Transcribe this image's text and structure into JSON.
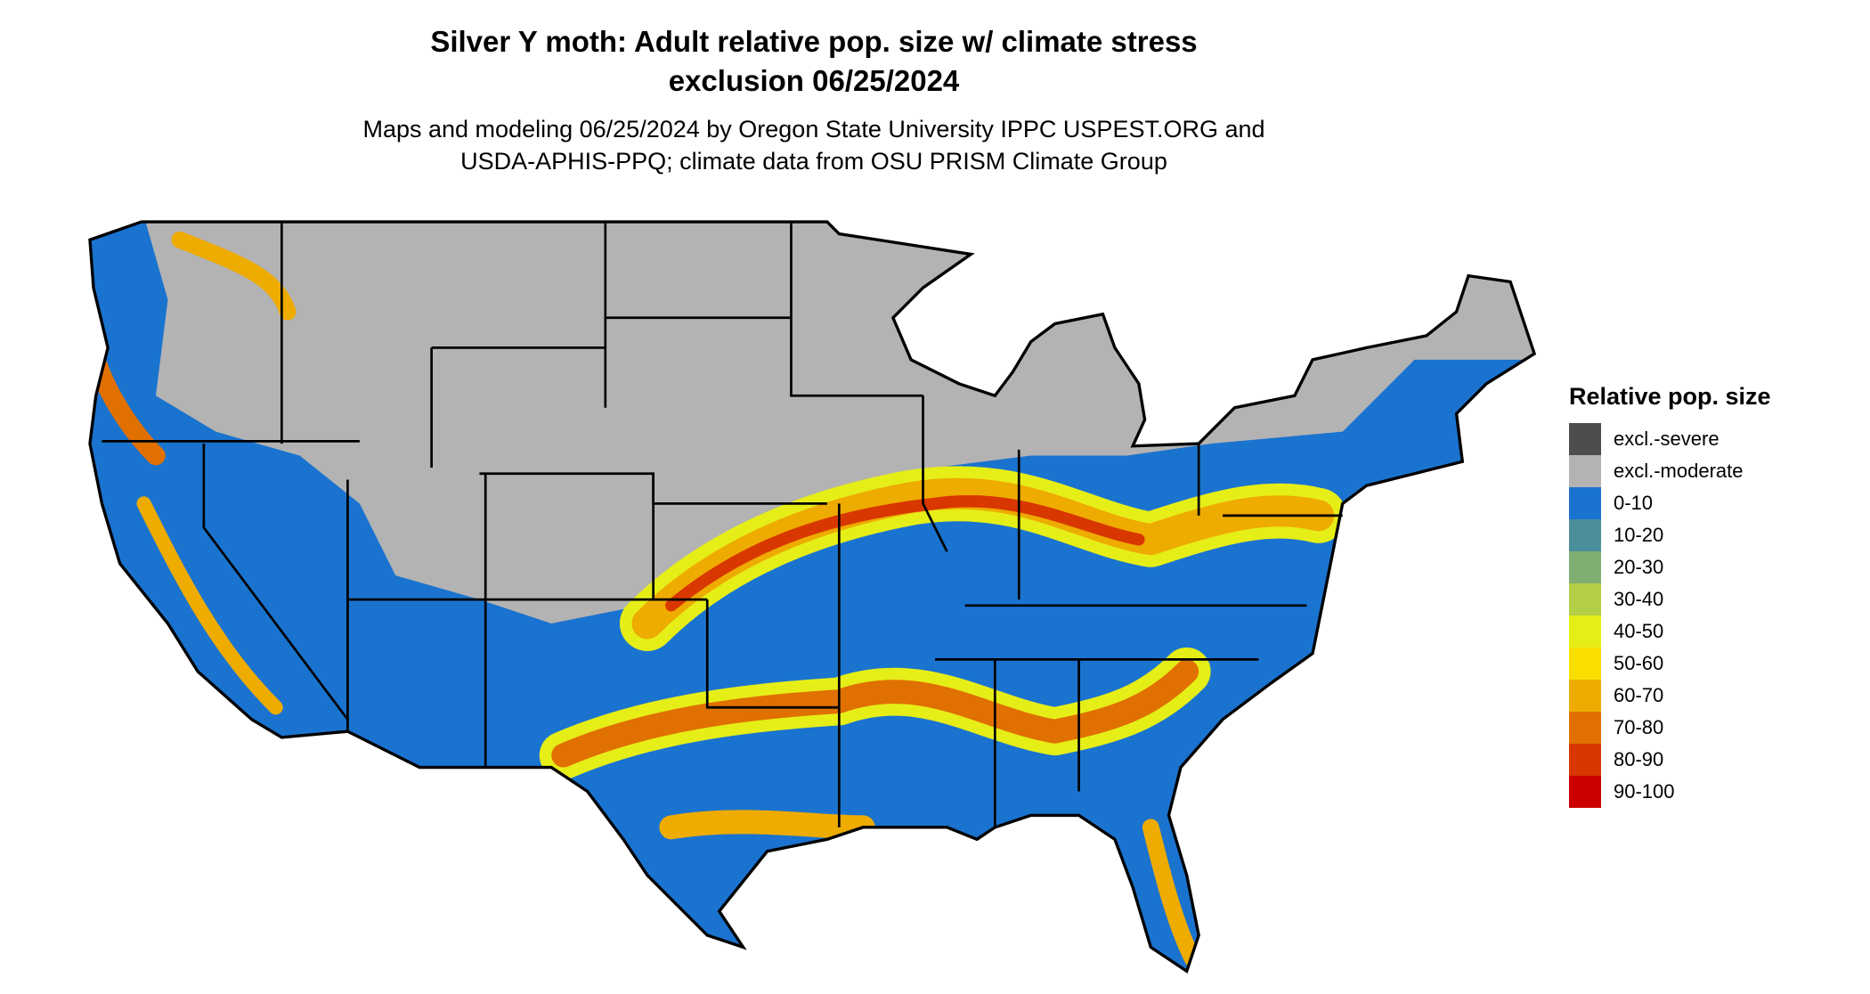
{
  "title": {
    "line1": "Silver Y moth: Adult relative pop. size w/ climate stress",
    "line2": "exclusion 06/25/2024"
  },
  "subtitle": {
    "line1": "Maps and modeling 06/25/2024 by Oregon State University IPPC USPEST.ORG and",
    "line2": "USDA-APHIS-PPQ; climate data from OSU PRISM Climate Group"
  },
  "legend": {
    "title": "Relative pop. size",
    "items": [
      {
        "label": "excl.-severe",
        "color": "#4d4d4d"
      },
      {
        "label": "excl.-moderate",
        "color": "#b3b3b3"
      },
      {
        "label": "0-10",
        "color": "#1a73cf"
      },
      {
        "label": "10-20",
        "color": "#4a8f9b"
      },
      {
        "label": "20-30",
        "color": "#7fb072"
      },
      {
        "label": "30-40",
        "color": "#b2cf45"
      },
      {
        "label": "40-50",
        "color": "#e6ee18"
      },
      {
        "label": "50-60",
        "color": "#f8df00"
      },
      {
        "label": "60-70",
        "color": "#eeab00"
      },
      {
        "label": "70-80",
        "color": "#e07000"
      },
      {
        "label": "80-90",
        "color": "#d83700"
      },
      {
        "label": "90-100",
        "color": "#cc0000"
      }
    ]
  }
}
